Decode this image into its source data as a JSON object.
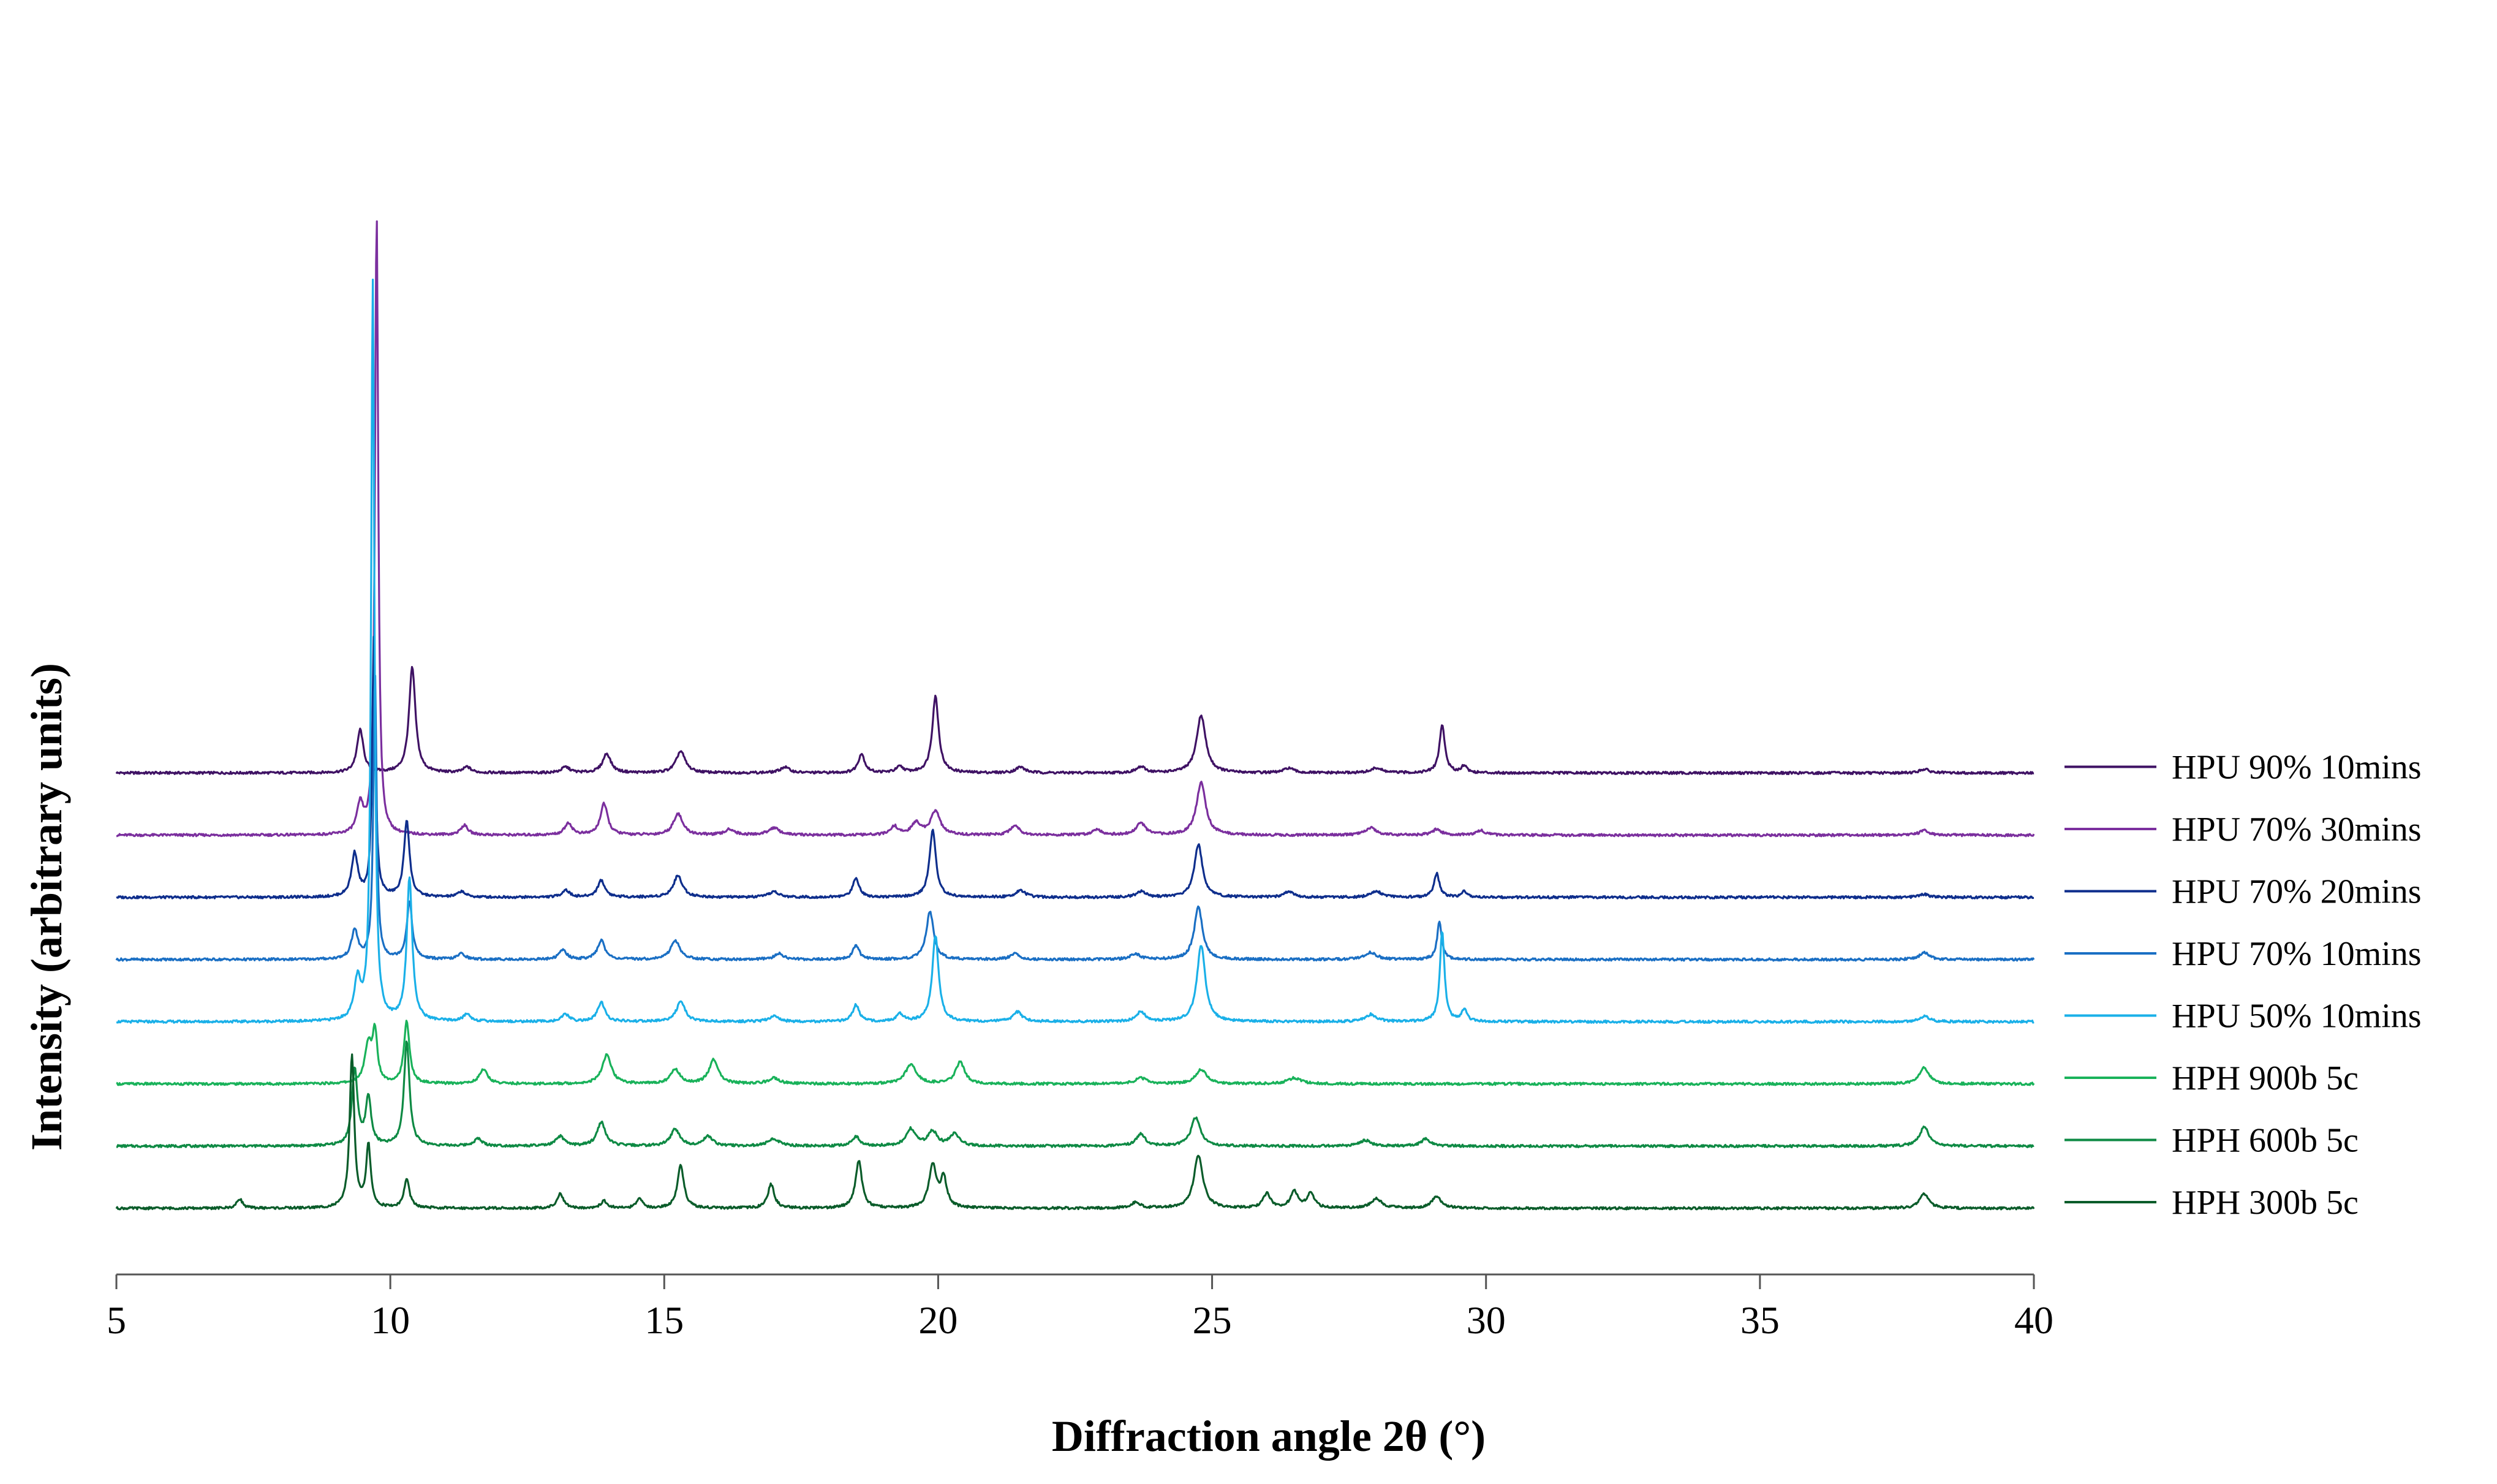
{
  "chart_data": {
    "type": "line",
    "title": "",
    "xlabel": "Diffraction angle 2θ (°)",
    "ylabel": "Intensity (arbitrary units)",
    "xlim": [
      5,
      40
    ],
    "x_ticks": [
      "5",
      "10",
      "15",
      "20",
      "25",
      "30",
      "35",
      "40"
    ],
    "grid": false,
    "legend_position": "right",
    "stacked_offset": true,
    "series": [
      {
        "name": "HPU 90% 10mins",
        "color": "#3f1264",
        "peaks": [
          [
            9.45,
            0.9,
            0.07
          ],
          [
            10.4,
            2.2,
            0.07
          ],
          [
            11.4,
            0.12,
            0.08
          ],
          [
            13.2,
            0.12,
            0.09
          ],
          [
            13.95,
            0.4,
            0.09
          ],
          [
            15.3,
            0.45,
            0.1
          ],
          [
            17.2,
            0.12,
            0.1
          ],
          [
            18.6,
            0.4,
            0.07
          ],
          [
            19.3,
            0.12,
            0.08
          ],
          [
            19.95,
            1.6,
            0.07
          ],
          [
            21.5,
            0.12,
            0.1
          ],
          [
            23.7,
            0.12,
            0.1
          ],
          [
            24.8,
            1.2,
            0.1
          ],
          [
            26.4,
            0.1,
            0.1
          ],
          [
            28.0,
            0.1,
            0.12
          ],
          [
            29.2,
            1.0,
            0.06
          ],
          [
            29.6,
            0.15,
            0.06
          ],
          [
            38.0,
            0.08,
            0.1
          ]
        ]
      },
      {
        "name": "HPU 70% 30mins",
        "color": "#7b2f9e",
        "peaks": [
          [
            9.45,
            0.6,
            0.07
          ],
          [
            9.75,
            13.0,
            0.035
          ],
          [
            11.35,
            0.2,
            0.08
          ],
          [
            13.25,
            0.25,
            0.08
          ],
          [
            13.9,
            0.65,
            0.08
          ],
          [
            15.25,
            0.45,
            0.1
          ],
          [
            16.2,
            0.12,
            0.1
          ],
          [
            17.0,
            0.15,
            0.12
          ],
          [
            19.2,
            0.18,
            0.08
          ],
          [
            19.6,
            0.25,
            0.1
          ],
          [
            19.95,
            0.5,
            0.1
          ],
          [
            21.4,
            0.2,
            0.1
          ],
          [
            22.9,
            0.12,
            0.1
          ],
          [
            23.7,
            0.25,
            0.1
          ],
          [
            24.8,
            1.1,
            0.1
          ],
          [
            27.9,
            0.15,
            0.12
          ],
          [
            29.1,
            0.12,
            0.1
          ],
          [
            29.9,
            0.1,
            0.1
          ],
          [
            38.0,
            0.1,
            0.1
          ]
        ]
      },
      {
        "name": "HPU 70% 20mins",
        "color": "#0e2e8c",
        "peaks": [
          [
            9.35,
            0.9,
            0.07
          ],
          [
            9.7,
            5.5,
            0.035
          ],
          [
            10.3,
            1.6,
            0.06
          ],
          [
            11.3,
            0.12,
            0.08
          ],
          [
            13.2,
            0.15,
            0.08
          ],
          [
            13.85,
            0.35,
            0.08
          ],
          [
            15.25,
            0.45,
            0.1
          ],
          [
            17.0,
            0.12,
            0.1
          ],
          [
            18.5,
            0.4,
            0.07
          ],
          [
            19.9,
            1.4,
            0.07
          ],
          [
            21.5,
            0.15,
            0.1
          ],
          [
            23.7,
            0.12,
            0.1
          ],
          [
            24.75,
            1.1,
            0.09
          ],
          [
            26.4,
            0.12,
            0.1
          ],
          [
            28.0,
            0.12,
            0.12
          ],
          [
            29.1,
            0.5,
            0.06
          ],
          [
            29.6,
            0.12,
            0.06
          ],
          [
            38.0,
            0.06,
            0.1
          ]
        ]
      },
      {
        "name": "HPU 70% 10mins",
        "color": "#1a6fc4",
        "peaks": [
          [
            9.35,
            0.6,
            0.07
          ],
          [
            9.72,
            6.0,
            0.035
          ],
          [
            10.35,
            1.2,
            0.06
          ],
          [
            11.3,
            0.12,
            0.08
          ],
          [
            13.15,
            0.2,
            0.08
          ],
          [
            13.85,
            0.4,
            0.08
          ],
          [
            15.2,
            0.4,
            0.1
          ],
          [
            17.1,
            0.12,
            0.1
          ],
          [
            18.5,
            0.3,
            0.07
          ],
          [
            19.85,
            1.0,
            0.08
          ],
          [
            21.4,
            0.12,
            0.1
          ],
          [
            23.6,
            0.12,
            0.1
          ],
          [
            24.75,
            1.1,
            0.09
          ],
          [
            27.9,
            0.15,
            0.12
          ],
          [
            29.15,
            0.8,
            0.05
          ],
          [
            38.0,
            0.15,
            0.1
          ]
        ]
      },
      {
        "name": "HPU 50% 10mins",
        "color": "#1ab0e8",
        "peaks": [
          [
            9.4,
            0.8,
            0.07
          ],
          [
            9.68,
            15.5,
            0.035
          ],
          [
            10.35,
            3.0,
            0.06
          ],
          [
            11.4,
            0.15,
            0.08
          ],
          [
            13.2,
            0.15,
            0.08
          ],
          [
            13.85,
            0.4,
            0.08
          ],
          [
            15.3,
            0.4,
            0.1
          ],
          [
            17.0,
            0.12,
            0.1
          ],
          [
            18.5,
            0.35,
            0.07
          ],
          [
            19.3,
            0.15,
            0.08
          ],
          [
            19.95,
            1.8,
            0.07
          ],
          [
            21.45,
            0.2,
            0.1
          ],
          [
            23.7,
            0.2,
            0.1
          ],
          [
            24.8,
            1.6,
            0.09
          ],
          [
            27.9,
            0.15,
            0.12
          ],
          [
            29.2,
            1.9,
            0.05
          ],
          [
            29.6,
            0.25,
            0.06
          ],
          [
            38.0,
            0.12,
            0.1
          ]
        ]
      },
      {
        "name": "HPH 900b 5c",
        "color": "#19b25a",
        "peaks": [
          [
            9.6,
            0.8,
            0.08
          ],
          [
            9.72,
            1.0,
            0.05
          ],
          [
            10.3,
            1.3,
            0.06
          ],
          [
            11.7,
            0.3,
            0.09
          ],
          [
            13.95,
            0.6,
            0.1
          ],
          [
            15.2,
            0.3,
            0.1
          ],
          [
            15.9,
            0.5,
            0.1
          ],
          [
            17.0,
            0.12,
            0.12
          ],
          [
            19.5,
            0.4,
            0.12
          ],
          [
            20.4,
            0.45,
            0.1
          ],
          [
            23.7,
            0.12,
            0.12
          ],
          [
            24.8,
            0.3,
            0.12
          ],
          [
            26.5,
            0.12,
            0.15
          ],
          [
            38.0,
            0.35,
            0.1
          ]
        ]
      },
      {
        "name": "HPH 600b 5c",
        "color": "#0e8a44",
        "peaks": [
          [
            9.35,
            1.6,
            0.06
          ],
          [
            9.6,
            1.0,
            0.06
          ],
          [
            10.3,
            2.2,
            0.06
          ],
          [
            11.6,
            0.15,
            0.09
          ],
          [
            13.1,
            0.2,
            0.09
          ],
          [
            13.85,
            0.5,
            0.09
          ],
          [
            15.2,
            0.35,
            0.1
          ],
          [
            15.8,
            0.2,
            0.1
          ],
          [
            17.0,
            0.15,
            0.12
          ],
          [
            18.5,
            0.2,
            0.08
          ],
          [
            19.5,
            0.35,
            0.1
          ],
          [
            19.9,
            0.3,
            0.1
          ],
          [
            20.3,
            0.25,
            0.1
          ],
          [
            23.7,
            0.25,
            0.1
          ],
          [
            24.7,
            0.6,
            0.1
          ],
          [
            27.8,
            0.12,
            0.12
          ],
          [
            28.9,
            0.15,
            0.1
          ],
          [
            38.0,
            0.4,
            0.1
          ]
        ]
      },
      {
        "name": "HPH 300b 5c",
        "color": "#0a5c2a",
        "peaks": [
          [
            7.25,
            0.2,
            0.06
          ],
          [
            9.3,
            3.2,
            0.05
          ],
          [
            9.6,
            1.3,
            0.05
          ],
          [
            10.3,
            0.6,
            0.06
          ],
          [
            13.1,
            0.3,
            0.07
          ],
          [
            13.9,
            0.15,
            0.07
          ],
          [
            14.55,
            0.2,
            0.06
          ],
          [
            15.3,
            0.9,
            0.07
          ],
          [
            16.95,
            0.5,
            0.07
          ],
          [
            18.55,
            1.0,
            0.07
          ],
          [
            19.9,
            0.9,
            0.08
          ],
          [
            20.1,
            0.6,
            0.07
          ],
          [
            23.6,
            0.12,
            0.1
          ],
          [
            24.75,
            1.1,
            0.1
          ],
          [
            26.0,
            0.3,
            0.08
          ],
          [
            26.5,
            0.35,
            0.08
          ],
          [
            26.8,
            0.3,
            0.08
          ],
          [
            28.0,
            0.2,
            0.12
          ],
          [
            29.1,
            0.25,
            0.1
          ],
          [
            38.0,
            0.3,
            0.1
          ]
        ]
      }
    ]
  }
}
